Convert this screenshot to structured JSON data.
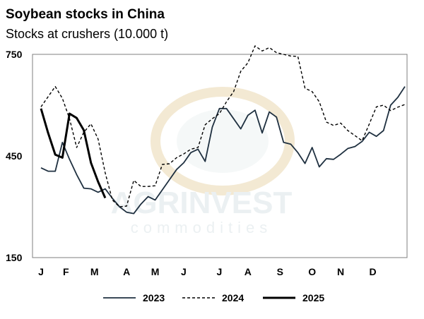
{
  "chart_data": {
    "type": "line",
    "title": "Soybean stocks in China",
    "subtitle": "Stocks at crushers (10.000 t)",
    "xlabel": "",
    "ylabel": "",
    "ylim": [
      150,
      750
    ],
    "yticks": [
      "150",
      "450",
      "750"
    ],
    "yticks_values": [
      150,
      450,
      750
    ],
    "xlim": [
      0,
      51
    ],
    "xticks": [
      "J",
      "F",
      "M",
      "A",
      "M",
      "J",
      "J",
      "A",
      "S",
      "O",
      "N",
      "D"
    ],
    "xticks_values": [
      0,
      3.5,
      7.5,
      12,
      16,
      20,
      25,
      29,
      33.5,
      38,
      42,
      46.5
    ],
    "grid": false,
    "legend": "bottom",
    "watermark": "AGRINVEST commodities",
    "series": [
      {
        "name": "2023",
        "style": "solid",
        "color": "#1f3040",
        "x": [
          0,
          1,
          2,
          3,
          4,
          5,
          6,
          7,
          8,
          9,
          10,
          11,
          12,
          13,
          14,
          15,
          16,
          17,
          18,
          19,
          20,
          21,
          22,
          23,
          24,
          25,
          26,
          27,
          28,
          29,
          30,
          31,
          32,
          33,
          34,
          35,
          36,
          37,
          38,
          39,
          40,
          41,
          42,
          43,
          44,
          45,
          46,
          47,
          48,
          49,
          50,
          51
        ],
        "values": [
          415,
          405,
          405,
          490,
          440,
          395,
          355,
          353,
          343,
          353,
          325,
          300,
          284,
          280,
          308,
          330,
          320,
          350,
          380,
          410,
          430,
          460,
          470,
          434,
          535,
          590,
          590,
          560,
          530,
          570,
          585,
          518,
          580,
          565,
          490,
          485,
          460,
          428,
          475,
          418,
          442,
          440,
          455,
          472,
          478,
          493,
          520,
          508,
          525,
          600,
          623,
          655
        ]
      },
      {
        "name": "2024",
        "style": "dashed",
        "color": "#000000",
        "x": [
          0,
          1,
          2,
          3,
          4,
          5,
          6,
          7,
          8,
          9,
          10,
          11,
          12,
          13,
          14,
          15,
          16,
          17,
          18,
          19,
          20,
          21,
          22,
          23,
          24,
          25,
          26,
          27,
          28,
          29,
          30,
          31,
          32,
          33,
          34,
          35,
          36,
          37,
          38,
          39,
          40,
          41,
          42,
          43,
          44,
          45,
          46,
          47,
          48,
          49,
          50,
          51
        ],
        "values": [
          595,
          625,
          655,
          620,
          560,
          475,
          520,
          545,
          500,
          400,
          320,
          300,
          302,
          378,
          360,
          360,
          362,
          425,
          427,
          445,
          456,
          470,
          475,
          542,
          560,
          575,
          610,
          640,
          700,
          725,
          775,
          760,
          770,
          755,
          750,
          745,
          744,
          650,
          640,
          610,
          550,
          540,
          547,
          525,
          510,
          495,
          544,
          595,
          600,
          584,
          594,
          602
        ]
      },
      {
        "name": "2025",
        "style": "solid-thick",
        "color": "#000000",
        "x": [
          0,
          1,
          2,
          3,
          4,
          5,
          6,
          7,
          8,
          9
        ],
        "values": [
          590,
          518,
          454,
          445,
          575,
          562,
          526,
          430,
          374,
          326
        ]
      }
    ]
  }
}
